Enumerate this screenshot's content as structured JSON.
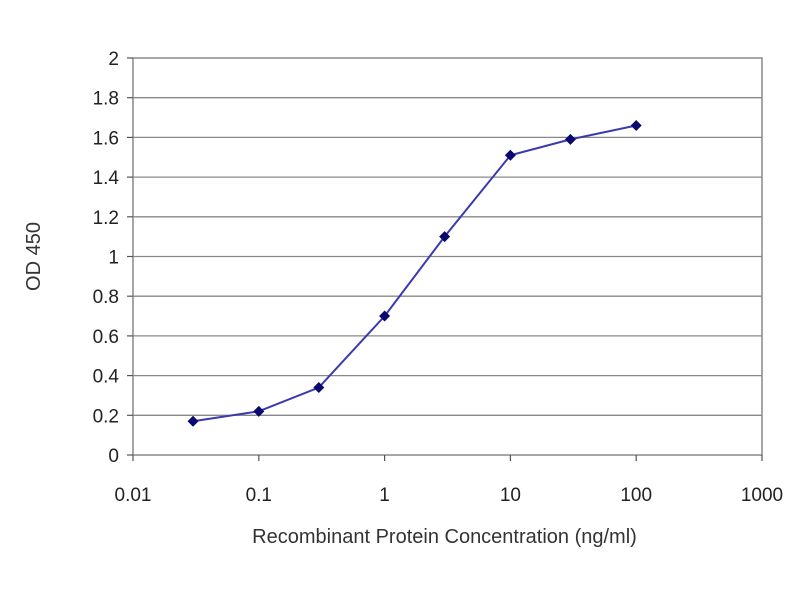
{
  "chart_data": {
    "type": "line",
    "xlabel": "Recombinant Protein Concentration (ng/ml)",
    "ylabel": "OD 450",
    "x_scale": "log",
    "xlim": [
      0.01,
      1000
    ],
    "ylim": [
      0,
      2
    ],
    "x_ticks": [
      "0.01",
      "0.1",
      "1",
      "10",
      "100",
      "1000"
    ],
    "y_ticks": [
      "0",
      "0.2",
      "0.4",
      "0.6",
      "0.8",
      "1",
      "1.2",
      "1.4",
      "1.6",
      "1.8",
      "2"
    ],
    "grid": "horizontal",
    "legend": "none",
    "series": [
      {
        "x": [
          0.03,
          0.1,
          0.3,
          1,
          3,
          10,
          30,
          100
        ],
        "y": [
          0.17,
          0.22,
          0.34,
          0.7,
          1.1,
          1.51,
          1.59,
          1.66
        ],
        "color": "#3a3ab0",
        "marker_color": "#0a0a6e"
      }
    ],
    "colors": {
      "plot_border": "#888888",
      "grid": "#888888"
    }
  }
}
